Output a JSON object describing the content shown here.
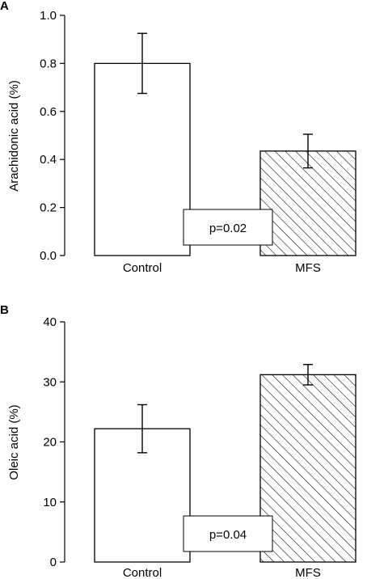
{
  "chart_data": [
    {
      "type": "bar",
      "panel_label": "A",
      "categories": [
        "Control",
        "MFS"
      ],
      "values": [
        0.8,
        0.435
      ],
      "error": [
        0.125,
        0.07
      ],
      "patterns": [
        "none",
        "diagonal-hatch"
      ],
      "ylabel": "Arachidonic acid (%)",
      "ylim": [
        0,
        1.0
      ],
      "yticks": [
        0.0,
        0.2,
        0.4,
        0.6,
        0.8,
        1.0
      ],
      "ytick_labels": [
        "0.0",
        "0.2",
        "0.4",
        "0.6",
        "0.8",
        "1.0"
      ],
      "annotation": "p=0.02"
    },
    {
      "type": "bar",
      "panel_label": "B",
      "categories": [
        "Control",
        "MFS"
      ],
      "values": [
        22.2,
        31.2
      ],
      "error": [
        4.0,
        1.7
      ],
      "patterns": [
        "none",
        "diagonal-hatch"
      ],
      "ylabel": "Oleic acid (%)",
      "ylim": [
        0,
        40
      ],
      "yticks": [
        0,
        10,
        20,
        30,
        40
      ],
      "ytick_labels": [
        "0",
        "10",
        "20",
        "30",
        "40"
      ],
      "annotation": "p=0.04"
    }
  ]
}
